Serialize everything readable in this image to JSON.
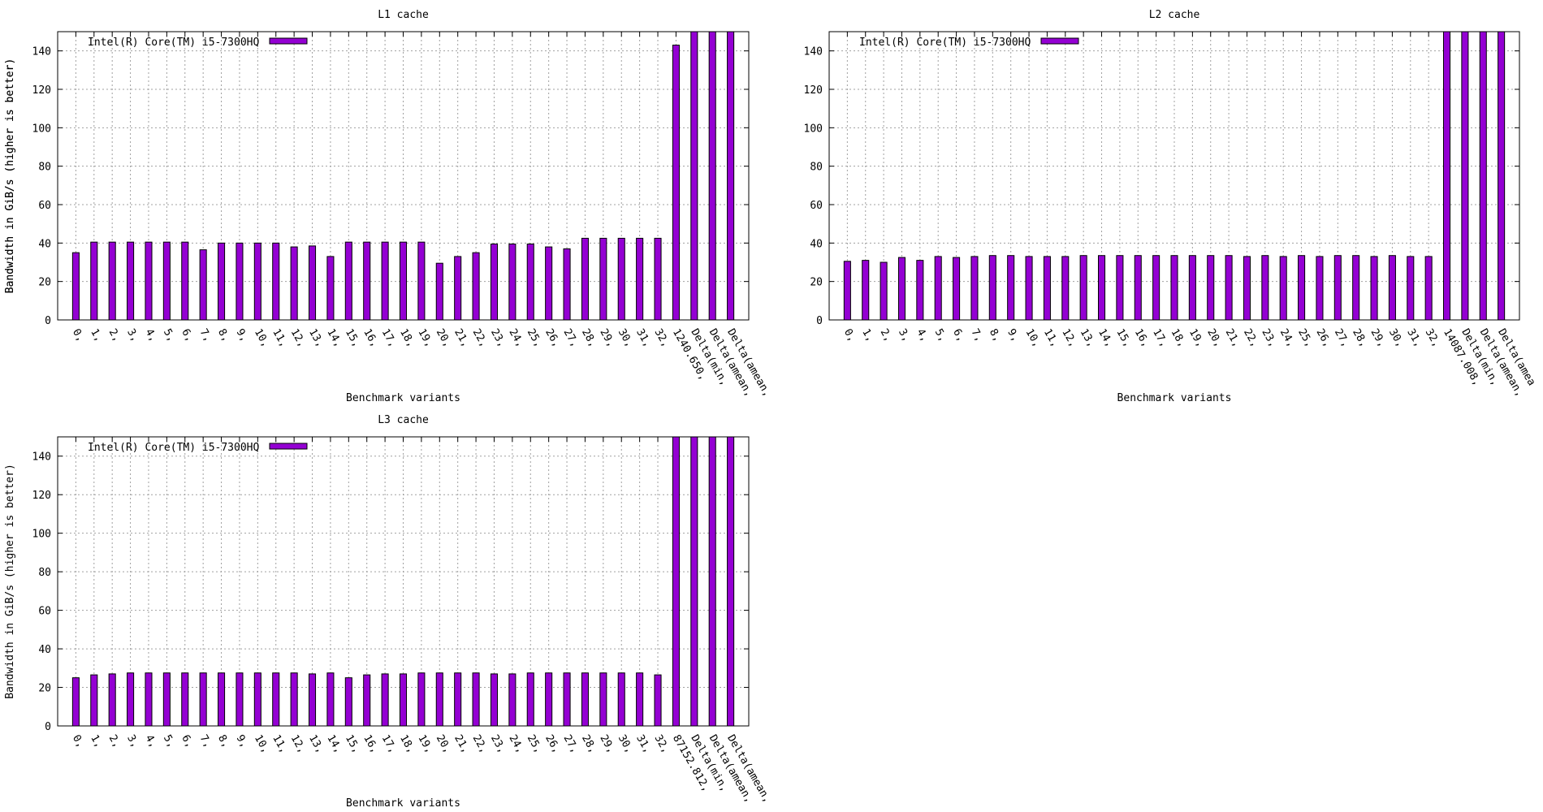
{
  "chart_data": [
    {
      "type": "bar",
      "title": "L1 cache",
      "xlabel": "Benchmark variants",
      "ylabel": "Bandwidth in GiB/s (higher is better)",
      "ylim": [
        0,
        150
      ],
      "yticks": [
        0,
        20,
        40,
        60,
        80,
        100,
        120,
        140
      ],
      "grid": true,
      "legend_position": "top-left",
      "bar_color": "#9400d3",
      "categories": [
        "0,",
        "1,",
        "2,",
        "3,",
        "4,",
        "5,",
        "6,",
        "7,",
        "8,",
        "9,",
        "10,",
        "11,",
        "12,",
        "13,",
        "14,",
        "15,",
        "16,",
        "17,",
        "18,",
        "19,",
        "20,",
        "21,",
        "22,",
        "23,",
        "24,",
        "25,",
        "26,",
        "27,",
        "28,",
        "29,",
        "30,",
        "31,",
        "32,",
        "1240.650,",
        "Delta(min,",
        "Delta(amean,",
        "Delta(amean,"
      ],
      "series": [
        {
          "name": "Intel(R) Core(TM) i5-7300HQ",
          "values": [
            35,
            40.5,
            40.5,
            40.5,
            40.5,
            40.5,
            40.5,
            36.5,
            40,
            40,
            40,
            40,
            38,
            38.5,
            33,
            40.5,
            40.5,
            40.5,
            40.5,
            40.5,
            29.5,
            33,
            35,
            39.5,
            39.5,
            39.5,
            38,
            37,
            42.5,
            42.5,
            42.5,
            42.5,
            42.5,
            143,
            150,
            150,
            150
          ]
        }
      ]
    },
    {
      "type": "bar",
      "title": "L2 cache",
      "xlabel": "Benchmark variants",
      "ylabel": "Bandwidth in GiB/s (higher is better)",
      "ylim": [
        0,
        150
      ],
      "yticks": [
        0,
        20,
        40,
        60,
        80,
        100,
        120,
        140
      ],
      "grid": true,
      "legend_position": "top-left",
      "bar_color": "#9400d3",
      "categories": [
        "0,",
        "1,",
        "2,",
        "3,",
        "4,",
        "5,",
        "6,",
        "7,",
        "8,",
        "9,",
        "10,",
        "11,",
        "12,",
        "13,",
        "14,",
        "15,",
        "16,",
        "17,",
        "18,",
        "19,",
        "20,",
        "21,",
        "22,",
        "23,",
        "24,",
        "25,",
        "26,",
        "27,",
        "28,",
        "29,",
        "30,",
        "31,",
        "32,",
        "14087.008,",
        "Delta(min,",
        "Delta(amean,",
        "Delta(amea"
      ],
      "series": [
        {
          "name": "Intel(R) Core(TM) i5-7300HQ",
          "values": [
            30.5,
            31,
            30,
            32.5,
            31,
            33,
            32.5,
            33,
            33.5,
            33.5,
            33,
            33,
            33,
            33.5,
            33.5,
            33.5,
            33.5,
            33.5,
            33.5,
            33.5,
            33.5,
            33.5,
            33,
            33.5,
            33,
            33.5,
            33,
            33.5,
            33.5,
            33,
            33.5,
            33,
            33,
            150,
            150,
            150,
            150
          ]
        }
      ]
    },
    {
      "type": "bar",
      "title": "L3 cache",
      "xlabel": "Benchmark variants",
      "ylabel": "Bandwidth in GiB/s (higher is better)",
      "ylim": [
        0,
        150
      ],
      "yticks": [
        0,
        20,
        40,
        60,
        80,
        100,
        120,
        140
      ],
      "grid": true,
      "legend_position": "top-left",
      "bar_color": "#9400d3",
      "categories": [
        "0,",
        "1,",
        "2,",
        "3,",
        "4,",
        "5,",
        "6,",
        "7,",
        "8,",
        "9,",
        "10,",
        "11,",
        "12,",
        "13,",
        "14,",
        "15,",
        "16,",
        "17,",
        "18,",
        "19,",
        "20,",
        "21,",
        "22,",
        "23,",
        "24,",
        "25,",
        "26,",
        "27,",
        "28,",
        "29,",
        "30,",
        "31,",
        "32,",
        "87152.812,",
        "Delta(min,",
        "Delta(amean,",
        "Delta(amean,"
      ],
      "series": [
        {
          "name": "Intel(R) Core(TM) i5-7300HQ",
          "values": [
            25,
            26.5,
            27,
            27.5,
            27.5,
            27.5,
            27.5,
            27.5,
            27.5,
            27.5,
            27.5,
            27.5,
            27.5,
            27,
            27.5,
            25,
            26.5,
            27,
            27,
            27.5,
            27.5,
            27.5,
            27.5,
            27,
            27,
            27.5,
            27.5,
            27.5,
            27.5,
            27.5,
            27.5,
            27.5,
            26.5,
            150,
            150,
            150,
            150
          ]
        }
      ]
    }
  ]
}
